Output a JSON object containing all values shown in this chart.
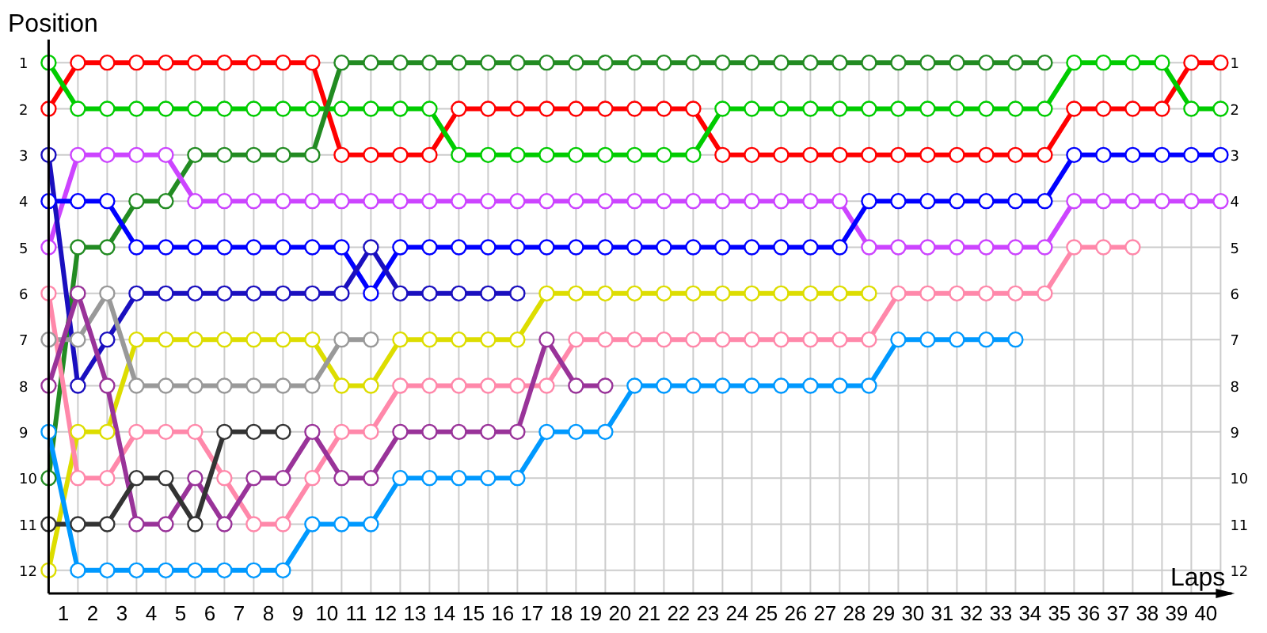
{
  "chart_data": {
    "type": "line",
    "xlabel": "Laps",
    "ylabel": "Position",
    "x": [
      0,
      1,
      2,
      3,
      4,
      5,
      6,
      7,
      8,
      9,
      10,
      11,
      12,
      13,
      14,
      15,
      16,
      17,
      18,
      19,
      20,
      21,
      22,
      23,
      24,
      25,
      26,
      27,
      28,
      29,
      30,
      31,
      32,
      33,
      34,
      35,
      36,
      37,
      38,
      39,
      40
    ],
    "xlim": [
      0,
      40
    ],
    "xticks": [
      {
        "value": 0,
        "label": null
      },
      {
        "value": 0.5,
        "label": "1"
      },
      {
        "value": 1,
        "label": null
      },
      {
        "value": 1.5,
        "label": "2"
      },
      {
        "value": 2,
        "label": null
      },
      {
        "value": 2.5,
        "label": "3"
      },
      {
        "value": 3,
        "label": null
      },
      {
        "value": 3.5,
        "label": "4"
      },
      {
        "value": 4,
        "label": null
      },
      {
        "value": 4.5,
        "label": "5"
      },
      {
        "value": 5,
        "label": null
      },
      {
        "value": 5.5,
        "label": "6"
      },
      {
        "value": 6,
        "label": null
      },
      {
        "value": 6.5,
        "label": "7"
      },
      {
        "value": 7,
        "label": null
      },
      {
        "value": 7.5,
        "label": "8"
      },
      {
        "value": 8,
        "label": null
      },
      {
        "value": 8.5,
        "label": "9"
      },
      {
        "value": 9,
        "label": null
      },
      {
        "value": 9.5,
        "label": "10"
      },
      {
        "value": 10,
        "label": null
      },
      {
        "value": 10.5,
        "label": "11"
      },
      {
        "value": 11,
        "label": null
      },
      {
        "value": 11.5,
        "label": "12"
      },
      {
        "value": 12,
        "label": null
      },
      {
        "value": 12.5,
        "label": "13"
      },
      {
        "value": 13,
        "label": null
      },
      {
        "value": 13.5,
        "label": "14"
      },
      {
        "value": 14,
        "label": null
      },
      {
        "value": 14.5,
        "label": "15"
      },
      {
        "value": 15,
        "label": null
      },
      {
        "value": 15.5,
        "label": "16"
      },
      {
        "value": 16,
        "label": null
      },
      {
        "value": 16.5,
        "label": "17"
      },
      {
        "value": 17,
        "label": null
      },
      {
        "value": 17.5,
        "label": "18"
      },
      {
        "value": 18,
        "label": null
      },
      {
        "value": 18.5,
        "label": "19"
      },
      {
        "value": 19,
        "label": null
      },
      {
        "value": 19.5,
        "label": "20"
      },
      {
        "value": 20,
        "label": null
      },
      {
        "value": 20.5,
        "label": "21"
      },
      {
        "value": 21,
        "label": null
      },
      {
        "value": 21.5,
        "label": "22"
      },
      {
        "value": 22,
        "label": null
      },
      {
        "value": 22.5,
        "label": "23"
      },
      {
        "value": 23,
        "label": null
      },
      {
        "value": 23.5,
        "label": "24"
      },
      {
        "value": 24,
        "label": null
      },
      {
        "value": 24.5,
        "label": "25"
      },
      {
        "value": 25,
        "label": null
      },
      {
        "value": 25.5,
        "label": "26"
      },
      {
        "value": 26,
        "label": null
      },
      {
        "value": 26.5,
        "label": "27"
      },
      {
        "value": 27,
        "label": null
      },
      {
        "value": 27.5,
        "label": "28"
      },
      {
        "value": 28,
        "label": null
      },
      {
        "value": 28.5,
        "label": "29"
      },
      {
        "value": 29,
        "label": null
      },
      {
        "value": 29.5,
        "label": "30"
      },
      {
        "value": 30,
        "label": null
      },
      {
        "value": 30.5,
        "label": "31"
      },
      {
        "value": 31,
        "label": null
      },
      {
        "value": 31.5,
        "label": "32"
      },
      {
        "value": 32,
        "label": null
      },
      {
        "value": 32.5,
        "label": "33"
      },
      {
        "value": 33,
        "label": null
      },
      {
        "value": 33.5,
        "label": "34"
      },
      {
        "value": 34,
        "label": null
      },
      {
        "value": 34.5,
        "label": "35"
      },
      {
        "value": 35,
        "label": null
      },
      {
        "value": 35.5,
        "label": "36"
      },
      {
        "value": 36,
        "label": null
      },
      {
        "value": 36.5,
        "label": "37"
      },
      {
        "value": 37,
        "label": null
      },
      {
        "value": 37.5,
        "label": "38"
      },
      {
        "value": 38,
        "label": null
      },
      {
        "value": 38.5,
        "label": "39"
      },
      {
        "value": 39,
        "label": null
      },
      {
        "value": 39.5,
        "label": "40"
      },
      {
        "value": 40,
        "label": null
      }
    ],
    "ylim": [
      12.5,
      0.5
    ],
    "yticks": [
      1,
      2,
      3,
      4,
      5,
      6,
      7,
      8,
      9,
      10,
      11,
      12
    ],
    "y2lim": [
      12.5,
      0.5
    ],
    "y2ticks": [
      1,
      2,
      3,
      4,
      5,
      6,
      7,
      8,
      9,
      10,
      11,
      12
    ],
    "grid": true,
    "marker": "circle",
    "series": [
      {
        "color": "#ff0000",
        "values": [
          2,
          1,
          1,
          1,
          1,
          1,
          1,
          1,
          1,
          1,
          3,
          3,
          3,
          3,
          2,
          2,
          2,
          2,
          2,
          2,
          2,
          2,
          2,
          3,
          3,
          3,
          3,
          3,
          3,
          3,
          3,
          3,
          3,
          3,
          3,
          2,
          2,
          2,
          2,
          1,
          1
        ]
      },
      {
        "color": "#00cc00",
        "values": [
          1,
          2,
          2,
          2,
          2,
          2,
          2,
          2,
          2,
          2,
          2,
          2,
          2,
          2,
          3,
          3,
          3,
          3,
          3,
          3,
          3,
          3,
          3,
          2,
          2,
          2,
          2,
          2,
          2,
          2,
          2,
          2,
          2,
          2,
          2,
          1,
          1,
          1,
          1,
          2,
          2
        ]
      },
      {
        "color": "#228b22",
        "values": [
          10,
          5,
          5,
          4,
          4,
          3,
          3,
          3,
          3,
          3,
          1,
          1,
          1,
          1,
          1,
          1,
          1,
          1,
          1,
          1,
          1,
          1,
          1,
          1,
          1,
          1,
          1,
          1,
          1,
          1,
          1,
          1,
          1,
          1,
          1,
          null,
          null,
          null,
          null,
          null,
          null
        ]
      },
      {
        "color": "#cc44ff",
        "values": [
          5,
          3,
          3,
          3,
          3,
          4,
          4,
          4,
          4,
          4,
          4,
          4,
          4,
          4,
          4,
          4,
          4,
          4,
          4,
          4,
          4,
          4,
          4,
          4,
          4,
          4,
          4,
          4,
          5,
          5,
          5,
          5,
          5,
          5,
          5,
          4,
          4,
          4,
          4,
          4,
          4
        ]
      },
      {
        "color": "#0000ff",
        "values": [
          4,
          4,
          4,
          5,
          5,
          5,
          5,
          5,
          5,
          5,
          5,
          6,
          5,
          5,
          5,
          5,
          5,
          5,
          5,
          5,
          5,
          5,
          5,
          5,
          5,
          5,
          5,
          5,
          4,
          4,
          4,
          4,
          4,
          4,
          4,
          3,
          3,
          3,
          3,
          3,
          3
        ]
      },
      {
        "color": "#1a0fbf",
        "values": [
          3,
          8,
          7,
          6,
          6,
          6,
          6,
          6,
          6,
          6,
          6,
          5,
          6,
          6,
          6,
          6,
          6,
          null,
          null,
          null,
          null,
          null,
          null,
          null,
          null,
          null,
          null,
          null,
          null,
          null,
          null,
          null,
          null,
          null,
          null,
          null,
          null,
          null,
          null,
          null,
          null
        ]
      },
      {
        "color": "#dddd00",
        "values": [
          12,
          9,
          9,
          7,
          7,
          7,
          7,
          7,
          7,
          7,
          8,
          8,
          7,
          7,
          7,
          7,
          7,
          6,
          6,
          6,
          6,
          6,
          6,
          6,
          6,
          6,
          6,
          6,
          6,
          null,
          null,
          null,
          null,
          null,
          null,
          null,
          null,
          null,
          null,
          null,
          null
        ]
      },
      {
        "color": "#999999",
        "values": [
          7,
          7,
          6,
          8,
          8,
          8,
          8,
          8,
          8,
          8,
          7,
          7,
          null,
          null,
          null,
          null,
          null,
          null,
          null,
          null,
          null,
          null,
          null,
          null,
          null,
          null,
          null,
          null,
          null,
          null,
          null,
          null,
          null,
          null,
          null,
          null,
          null,
          null,
          null,
          null,
          null
        ]
      },
      {
        "color": "#ff88aa",
        "values": [
          6,
          10,
          10,
          9,
          9,
          9,
          10,
          11,
          11,
          10,
          9,
          9,
          8,
          8,
          8,
          8,
          8,
          8,
          7,
          7,
          7,
          7,
          7,
          7,
          7,
          7,
          7,
          7,
          7,
          6,
          6,
          6,
          6,
          6,
          6,
          5,
          5,
          5,
          null,
          null,
          null
        ]
      },
      {
        "color": "#993399",
        "values": [
          8,
          6,
          8,
          11,
          11,
          10,
          11,
          10,
          10,
          9,
          10,
          10,
          9,
          9,
          9,
          9,
          9,
          7,
          8,
          8,
          null,
          null,
          null,
          null,
          null,
          null,
          null,
          null,
          null,
          null,
          null,
          null,
          null,
          null,
          null,
          null,
          null,
          null,
          null,
          null,
          null
        ]
      },
      {
        "color": "#333333",
        "values": [
          11,
          11,
          11,
          10,
          10,
          11,
          9,
          9,
          9,
          null,
          null,
          null,
          null,
          null,
          null,
          null,
          null,
          null,
          null,
          null,
          null,
          null,
          null,
          null,
          null,
          null,
          null,
          null,
          null,
          null,
          null,
          null,
          null,
          null,
          null,
          null,
          null,
          null,
          null,
          null,
          null
        ]
      },
      {
        "color": "#0099ff",
        "values": [
          9,
          12,
          12,
          12,
          12,
          12,
          12,
          12,
          12,
          11,
          11,
          11,
          10,
          10,
          10,
          10,
          10,
          9,
          9,
          9,
          8,
          8,
          8,
          8,
          8,
          8,
          8,
          8,
          8,
          7,
          7,
          7,
          7,
          7,
          null,
          null,
          null,
          null,
          null,
          null,
          null
        ]
      }
    ]
  }
}
